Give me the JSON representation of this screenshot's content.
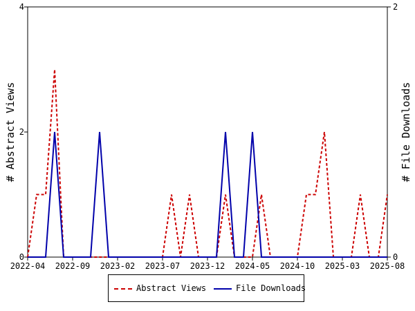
{
  "chart_data": {
    "type": "line",
    "x_dates": [
      "2022-04",
      "2022-05",
      "2022-06",
      "2022-07",
      "2022-08",
      "2022-09",
      "2022-10",
      "2022-11",
      "2022-12",
      "2023-01",
      "2023-02",
      "2023-03",
      "2023-04",
      "2023-05",
      "2023-06",
      "2023-07",
      "2023-08",
      "2023-09",
      "2023-10",
      "2023-11",
      "2023-12",
      "2024-01",
      "2024-02",
      "2024-03",
      "2024-04",
      "2024-05",
      "2024-06",
      "2024-07",
      "2024-08",
      "2024-09",
      "2024-10",
      "2024-11",
      "2024-12",
      "2025-01",
      "2025-02",
      "2025-03",
      "2025-04",
      "2025-05",
      "2025-06",
      "2025-07",
      "2025-08"
    ],
    "x_tick_labels": [
      "2022-04",
      "2022-09",
      "2023-02",
      "2023-07",
      "2023-12",
      "2024-05",
      "2024-10",
      "2025-03",
      "2025-08"
    ],
    "y_left": {
      "label": "# Abstract Views",
      "range": [
        0,
        4
      ],
      "ticks": [
        "0",
        "2",
        "4"
      ]
    },
    "y_right": {
      "label": "# File Downloads",
      "range": [
        0,
        2
      ],
      "ticks": [
        "0",
        "2"
      ]
    },
    "series": [
      {
        "name": "Abstract Views",
        "axis": "left",
        "color": "#cc0000",
        "dash": "dashed",
        "values": [
          0,
          1,
          1,
          3,
          0,
          0,
          0,
          0,
          0,
          0,
          0,
          0,
          0,
          0,
          0,
          0,
          1,
          0,
          1,
          0,
          0,
          0,
          1,
          0,
          0,
          0,
          1,
          0,
          0,
          0,
          0,
          1,
          1,
          2,
          0,
          0,
          0,
          1,
          0,
          0,
          1
        ]
      },
      {
        "name": "File Downloads",
        "axis": "right",
        "color": "#0000aa",
        "dash": "solid",
        "values": [
          0,
          0,
          0,
          1,
          0,
          0,
          0,
          0,
          1,
          0,
          0,
          0,
          0,
          0,
          0,
          0,
          0,
          0,
          0,
          0,
          0,
          0,
          1,
          0,
          0,
          1,
          0,
          0,
          0,
          0,
          0,
          0,
          0,
          0,
          0,
          0,
          0,
          0,
          0,
          0,
          0
        ]
      }
    ],
    "legend": {
      "placement": "bottom",
      "entries": [
        "Abstract Views",
        "File Downloads"
      ]
    },
    "grid": false
  }
}
